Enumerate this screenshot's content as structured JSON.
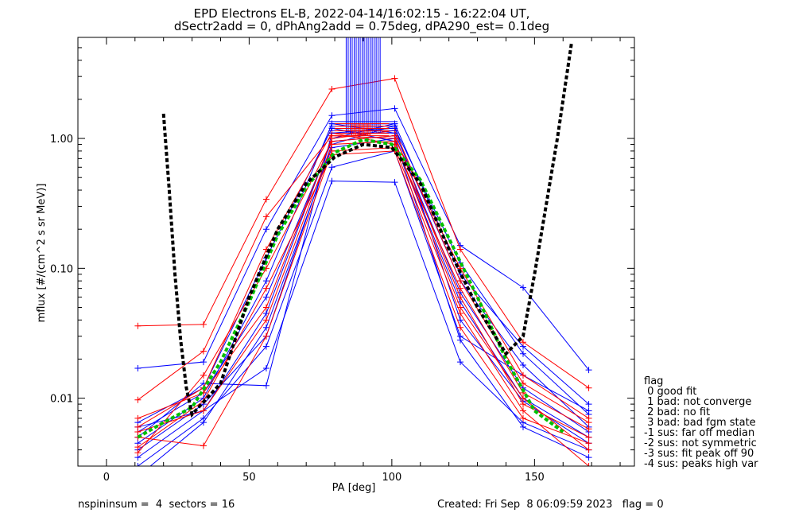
{
  "chart_data": {
    "type": "line",
    "title": "EPD Electrons EL-B, 2022-04-14/16:02:15 - 16:22:04 UT,",
    "subtitle": "dSectr2add = 0, dPhAng2add = 0.75deg, dPA290_est=   0.1deg",
    "xlabel": "PA [deg]",
    "ylabel": "mflux [#/(cm^2 s sr MeV)]",
    "xlim": [
      -10,
      185
    ],
    "ylim": [
      0.003,
      6
    ],
    "yscale": "log",
    "xticks": [
      0,
      50,
      100,
      150
    ],
    "xtick_labels": [
      "0",
      "50",
      "100",
      "150"
    ],
    "yticks": [
      0.01,
      0.1,
      1.0
    ],
    "ytick_labels": [
      "0.01",
      "0.10",
      "1.00"
    ],
    "grid": false,
    "pa_bins": [
      11,
      34,
      56,
      79,
      101,
      124,
      146,
      169
    ],
    "series": [
      {
        "color": "#0000ff",
        "values": [
          0.0055,
          0.011,
          0.06,
          0.95,
          1.05,
          0.065,
          0.012,
          0.0055
        ]
      },
      {
        "color": "#0000ff",
        "values": [
          0.017,
          0.019,
          0.2,
          1.5,
          1.7,
          0.15,
          0.071,
          0.0165
        ]
      },
      {
        "color": "#0000ff",
        "values": [
          0.004,
          0.009,
          0.03,
          0.9,
          1.25,
          0.04,
          0.0095,
          0.0045
        ]
      },
      {
        "color": "#0000ff",
        "values": [
          0.006,
          0.008,
          0.017,
          0.47,
          0.46,
          0.019,
          0.0065,
          0.004
        ]
      },
      {
        "color": "#0000ff",
        "values": [
          0.003,
          0.007,
          0.025,
          0.6,
          0.8,
          0.03,
          0.015,
          0.008
        ]
      },
      {
        "color": "#0000ff",
        "values": [
          0.005,
          0.013,
          0.0125,
          1.1,
          1.2,
          0.11,
          0.022,
          0.0075
        ]
      },
      {
        "color": "#0000ff",
        "values": [
          0.0045,
          0.01,
          0.08,
          1.3,
          1.1,
          0.08,
          0.018,
          0.006
        ]
      },
      {
        "color": "#0000ff",
        "values": [
          0.0065,
          0.012,
          0.12,
          1.2,
          0.95,
          0.055,
          0.01,
          0.005
        ]
      },
      {
        "color": "#0000ff",
        "values": [
          0.0035,
          0.008,
          0.045,
          1.0,
          1.3,
          0.09,
          0.025,
          0.009
        ]
      },
      {
        "color": "#0000ff",
        "values": [
          0.0025,
          0.0065,
          0.035,
          0.85,
          1.0,
          0.028,
          0.006,
          0.0035
        ]
      },
      {
        "color": "#ff0000",
        "values": [
          0.036,
          0.037,
          0.34,
          2.4,
          2.9,
          0.14,
          0.027,
          0.012
        ]
      },
      {
        "color": "#ff0000",
        "values": [
          0.0097,
          0.023,
          0.25,
          1.05,
          1.0,
          0.1,
          0.015,
          0.007
        ]
      },
      {
        "color": "#ff0000",
        "values": [
          0.005,
          0.0043,
          0.03,
          0.8,
          0.85,
          0.045,
          0.008,
          0.003
        ]
      },
      {
        "color": "#ff0000",
        "values": [
          0.006,
          0.012,
          0.14,
          1.1,
          0.9,
          0.07,
          0.011,
          0.0058
        ]
      },
      {
        "color": "#ff0000",
        "values": [
          0.0042,
          0.0095,
          0.07,
          0.75,
          0.8,
          0.035,
          0.007,
          0.0045
        ]
      },
      {
        "color": "#ff0000",
        "values": [
          0.0038,
          0.015,
          0.1,
          0.95,
          1.05,
          0.06,
          0.009,
          0.005
        ]
      },
      {
        "color": "#ff0000",
        "values": [
          0.007,
          0.011,
          0.05,
          1.0,
          1.15,
          0.08,
          0.013,
          0.0065
        ]
      },
      {
        "color": "#ff0000",
        "values": [
          0.0055,
          0.008,
          0.04,
          0.9,
          0.95,
          0.05,
          0.01,
          0.004
        ]
      }
    ],
    "bundle": {
      "blue": {
        "color": "#0000ff",
        "x_range": [
          84,
          96
        ],
        "y_bottom": 1.1,
        "y_top": 6
      },
      "red": {
        "color": "#ff0000",
        "x_range": [
          86,
          93
        ],
        "y_bottom": 1.05,
        "y_top": 1.3
      }
    },
    "green_fit": {
      "color": "#00c000",
      "x": [
        11,
        20,
        30,
        40,
        50,
        60,
        70,
        80,
        90,
        100,
        110,
        120,
        130,
        140,
        150,
        160
      ],
      "y": [
        0.005,
        0.0065,
        0.0085,
        0.019,
        0.055,
        0.18,
        0.42,
        0.78,
        0.98,
        0.9,
        0.48,
        0.17,
        0.06,
        0.02,
        0.008,
        0.0055
      ]
    },
    "black_fit": {
      "color": "#000000",
      "x": [
        20,
        22,
        24,
        26,
        28,
        30,
        40,
        50,
        60,
        70,
        80,
        90,
        100,
        110,
        120,
        130,
        140,
        146,
        150,
        154,
        158,
        163
      ],
      "y": [
        1.55,
        0.4,
        0.09,
        0.028,
        0.012,
        0.0075,
        0.013,
        0.06,
        0.2,
        0.45,
        0.72,
        0.9,
        0.85,
        0.45,
        0.14,
        0.05,
        0.022,
        0.03,
        0.09,
        0.3,
        1.0,
        5.5
      ]
    },
    "legend": {
      "placement": "right",
      "title": "flag",
      "items": [
        " 0 good fit",
        " 1 bad: not converge",
        " 2 bad: no fit",
        " 3 bad: bad fgm state",
        "-1 sus: far off median",
        "-2 sus: not symmetric",
        "-3 sus: fit peak off 90",
        "-4 sus: peaks high var"
      ]
    }
  },
  "footer": {
    "left": "nspininsum =  4  sectors = 16",
    "right": "Created: Fri Sep  8 06:09:59 2023   flag = 0"
  }
}
